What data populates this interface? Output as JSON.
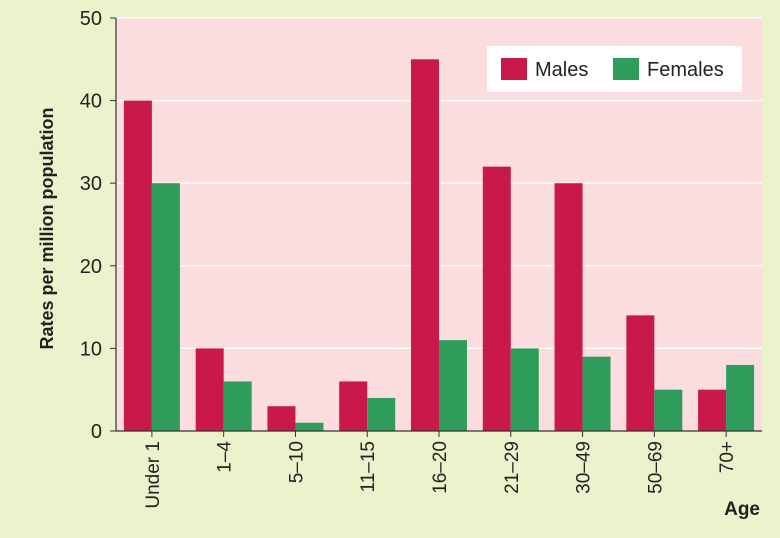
{
  "colors": {
    "page_background": "#eef2cc",
    "plot_background": "#fbdde0",
    "males": "#c8194a",
    "females": "#2e9c5b",
    "axis": "#333333",
    "grid": "#ffffff"
  },
  "chart_data": {
    "type": "bar",
    "title": "",
    "xlabel": "Age",
    "ylabel": "Rates per million population",
    "ylim": [
      0,
      50
    ],
    "yticks": [
      0,
      10,
      20,
      30,
      40,
      50
    ],
    "grid": true,
    "legend_position": "top-right",
    "categories": [
      "Under 1",
      "1–4",
      "5–10",
      "11–15",
      "16–20",
      "21–29",
      "30–49",
      "50–69",
      "70+"
    ],
    "series": [
      {
        "name": "Males",
        "color": "#c8194a",
        "values": [
          40,
          10,
          3,
          6,
          45,
          32,
          30,
          14,
          5
        ]
      },
      {
        "name": "Females",
        "color": "#2e9c5b",
        "values": [
          30,
          6,
          1,
          4,
          11,
          10,
          9,
          5,
          8
        ]
      }
    ]
  }
}
